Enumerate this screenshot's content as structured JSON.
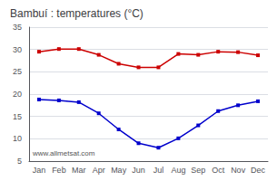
{
  "chart_data": {
    "type": "line",
    "title": "Bambuí : temperatures (°C)",
    "categories": [
      "Jan",
      "Feb",
      "Mar",
      "Apr",
      "May",
      "Jun",
      "Jul",
      "Aug",
      "Sep",
      "Oct",
      "Nov",
      "Dec"
    ],
    "series": [
      {
        "color": "#cc0000",
        "values": [
          29.5,
          30.1,
          30.1,
          28.8,
          26.8,
          26.0,
          26.0,
          29.0,
          28.8,
          29.5,
          29.4,
          28.7
        ]
      },
      {
        "color": "#0000cc",
        "values": [
          18.8,
          18.6,
          18.2,
          15.7,
          12.1,
          9.0,
          8.0,
          10.1,
          13.0,
          16.2,
          17.5,
          18.4
        ]
      }
    ],
    "marker": "square",
    "ylim": [
      5,
      35
    ],
    "yticks": [
      5,
      10,
      15,
      20,
      25,
      30,
      35
    ],
    "grid": true,
    "annotations": [
      "www.allmetsat.com"
    ]
  }
}
